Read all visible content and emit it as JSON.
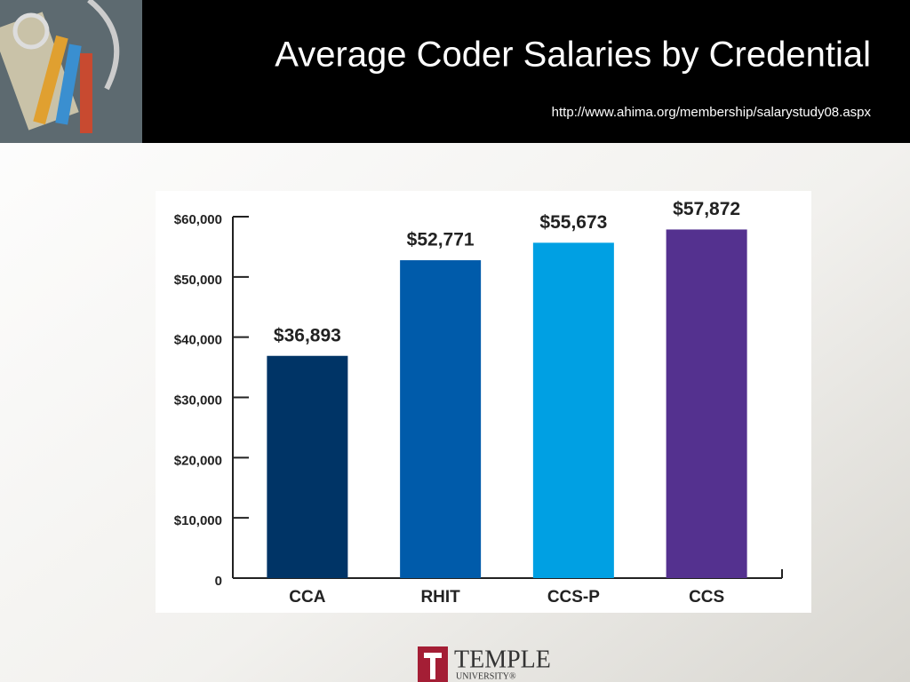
{
  "chart_data": {
    "type": "bar",
    "title": "Average Coder Salaries by Credential",
    "subtitle": "http://www.ahima.org/membership/salarystudy08.aspx",
    "categories": [
      "CCA",
      "RHIT",
      "CCS-P",
      "CCS"
    ],
    "values": [
      36893,
      52771,
      55673,
      57872
    ],
    "value_labels": [
      "$36,893",
      "$52,771",
      "$55,673",
      "$57,872"
    ],
    "colors": [
      "#003466",
      "#005baa",
      "#00a0e3",
      "#54318f"
    ],
    "ylim": [
      0,
      60000
    ],
    "yticks": [
      0,
      {
        "value": 10000,
        "label": "$10,000"
      },
      {
        "value": 20000,
        "label": "$20,000"
      },
      {
        "value": 30000,
        "label": "$30,000"
      },
      {
        "value": 40000,
        "label": "$40,000"
      },
      {
        "value": 50000,
        "label": "$50,000"
      },
      {
        "value": 60000,
        "label": "$60,000"
      }
    ]
  },
  "logo": {
    "name": "TEMPLE",
    "sub": "UNIVERSITY®"
  }
}
